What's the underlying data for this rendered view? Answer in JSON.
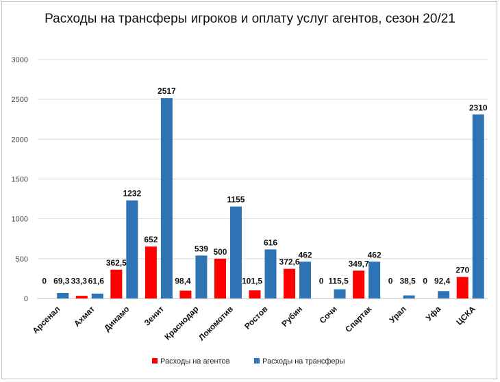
{
  "colors": {
    "agents": "#ff0000",
    "transfers": "#2e74b5",
    "grid": "#d9d9d9",
    "axis": "#bfbfbf"
  },
  "chart_data": {
    "type": "bar",
    "title": "Расходы на трансферы игроков  и оплату услуг агентов, сезон 20/21",
    "xlabel": "",
    "ylabel": "",
    "ylim": [
      0,
      3000
    ],
    "yticks": [
      "0",
      "500",
      "1000",
      "1500",
      "2000",
      "2500",
      "3000"
    ],
    "grid": true,
    "legend_position": "bottom",
    "categories": [
      "Арсенал",
      "Ахмат",
      "Динамо",
      "Зенит",
      "Краснодар",
      "Локомотив",
      "Ростов",
      "Рубин",
      "Сочи",
      "Спартак",
      "Урал",
      "Уфа",
      "ЦСКА"
    ],
    "series": [
      {
        "name": "Расходы на агентов",
        "values": [
          0,
          33.3,
          362.5,
          652,
          98.4,
          500,
          101.5,
          372.6,
          0,
          349.7,
          0,
          0,
          270
        ],
        "labels": [
          "0",
          "33,3",
          "362,5",
          "652",
          "98,4",
          "500",
          "101,5",
          "372,6",
          "0",
          "349,7",
          "0",
          "0",
          "270"
        ]
      },
      {
        "name": "Расходы на трансферы",
        "values": [
          69.3,
          61.6,
          1232,
          2517,
          539,
          1155,
          616,
          462,
          115.5,
          462,
          38.5,
          92.4,
          2310
        ],
        "labels": [
          "69,3",
          "61,6",
          "1232",
          "2517",
          "539",
          "1155",
          "616",
          "462",
          "115,5",
          "462",
          "38,5",
          "92,4",
          "2310"
        ]
      }
    ]
  }
}
